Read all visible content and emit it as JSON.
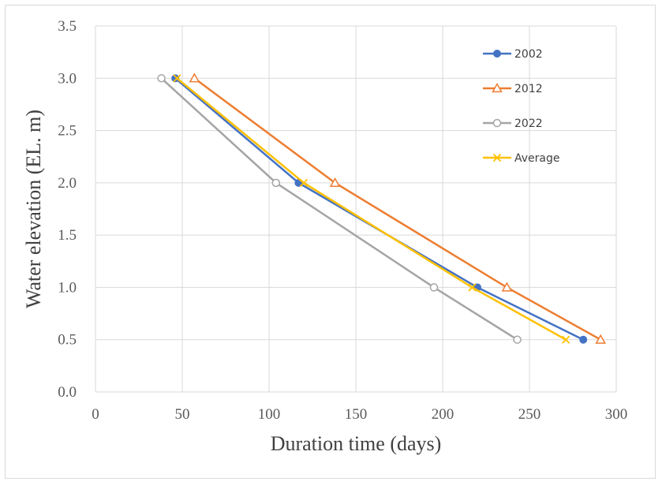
{
  "chart_data": {
    "type": "line",
    "title": "",
    "xlabel": "Duration time (days)",
    "ylabel": "Water elevation (EL. m)",
    "xlim": [
      0,
      300
    ],
    "ylim": [
      0.0,
      3.5
    ],
    "xticks": [
      0,
      50,
      100,
      150,
      200,
      250,
      300
    ],
    "yticks": [
      0.0,
      0.5,
      1.0,
      1.5,
      2.0,
      2.5,
      3.0,
      3.5
    ],
    "xtick_labels": [
      "0",
      "50",
      "100",
      "150",
      "200",
      "250",
      "300"
    ],
    "ytick_labels": [
      "0.0",
      "0.5",
      "1.0",
      "1.5",
      "2.0",
      "2.5",
      "3.0",
      "3.5"
    ],
    "grid": true,
    "legend_position": "top-right",
    "series": [
      {
        "name": "2002",
        "color": "#4472C4",
        "marker": "circle-filled",
        "x": [
          46,
          117,
          220,
          281
        ],
        "y": [
          3.0,
          2.0,
          1.0,
          0.5
        ]
      },
      {
        "name": "2012",
        "color": "#ED7D31",
        "marker": "triangle-open",
        "x": [
          57,
          138,
          237,
          291
        ],
        "y": [
          3.0,
          2.0,
          1.0,
          0.5
        ]
      },
      {
        "name": "2022",
        "color": "#A5A5A5",
        "marker": "circle-open",
        "x": [
          38,
          104,
          195,
          243
        ],
        "y": [
          3.0,
          2.0,
          1.0,
          0.5
        ]
      },
      {
        "name": "Average",
        "color": "#FFC000",
        "marker": "x",
        "x": [
          47,
          120,
          217,
          271
        ],
        "y": [
          3.0,
          2.0,
          1.0,
          0.5
        ]
      }
    ]
  }
}
